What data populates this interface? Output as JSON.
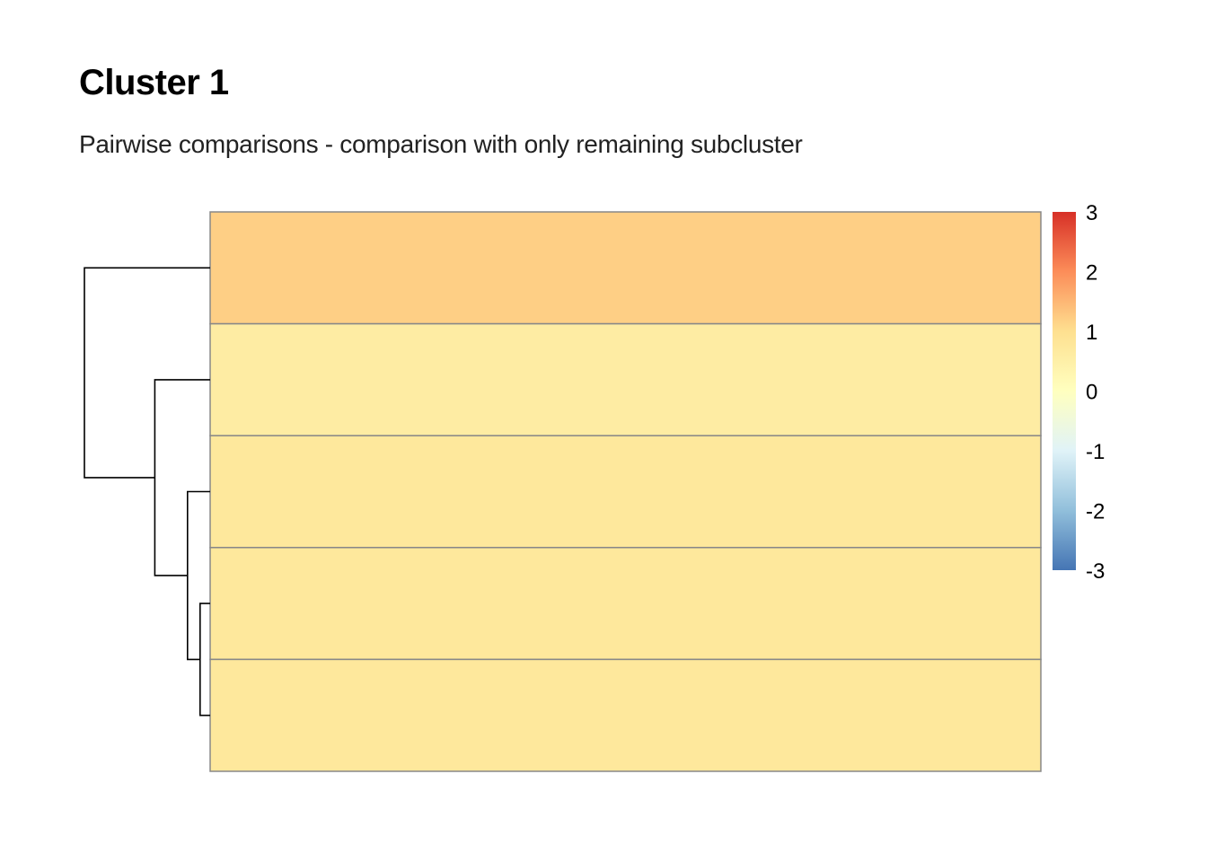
{
  "title": "Cluster 1",
  "subtitle": "Pairwise comparisons - comparison with only remaining subcluster",
  "chart_data": {
    "type": "heatmap",
    "rows": 5,
    "columns": 1,
    "values": [
      [
        1.2
      ],
      [
        0.6
      ],
      [
        0.75
      ],
      [
        0.75
      ],
      [
        0.75
      ]
    ],
    "color_scale": {
      "min": -3,
      "max": 3,
      "palette": "RdYlBu (reversed)",
      "stops": [
        "#4575b4",
        "#91bfdb",
        "#e0f3f8",
        "#ffffbf",
        "#fee090",
        "#fc8d59",
        "#d73027"
      ]
    },
    "legend": {
      "ticks": [
        "3",
        "2",
        "1",
        "0",
        "-1",
        "-2",
        "-3"
      ],
      "tick_values": [
        3,
        2,
        1,
        0,
        -1,
        -2,
        -3
      ],
      "placement": "right"
    },
    "cell_border_color": "#888888",
    "row_dendrogram": {
      "merges": [
        [
          3,
          4,
          0.08
        ],
        [
          2,
          3,
          0.18
        ],
        [
          1,
          2,
          0.44
        ],
        [
          0,
          1,
          1.0
        ]
      ]
    }
  }
}
